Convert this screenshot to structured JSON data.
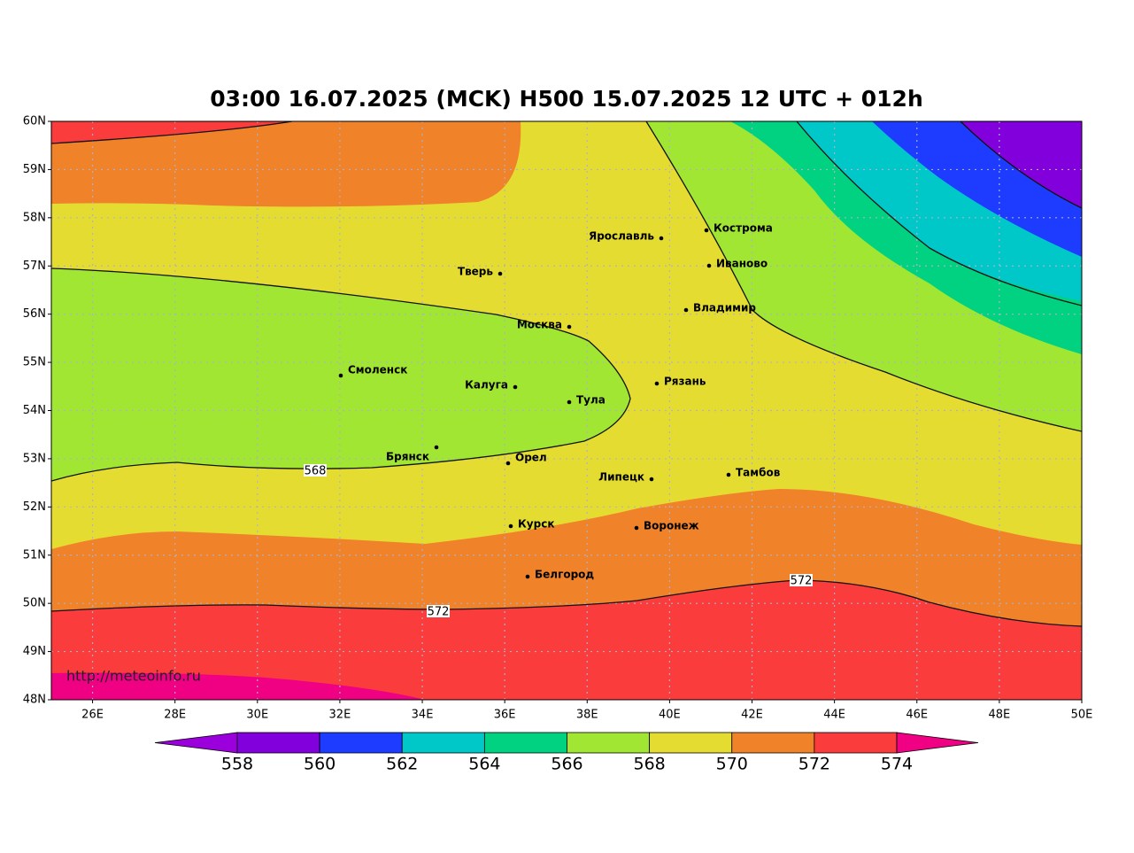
{
  "title": "03:00 16.07.2025 (MCK) H500  15.07.2025 12 UTC + 012h",
  "lat_labels": [
    "60N",
    "59N",
    "58N",
    "57N",
    "56N",
    "55N",
    "54N",
    "53N",
    "52N",
    "51N",
    "50N",
    "49N",
    "48N"
  ],
  "lon_labels": [
    "26E",
    "28E",
    "30E",
    "32E",
    "34E",
    "36E",
    "38E",
    "40E",
    "42E",
    "44E",
    "46E",
    "48E",
    "50E"
  ],
  "cities": [
    "Кострома",
    "Ярославль",
    "Иваново",
    "Тверь",
    "Владимир",
    "Москва",
    "Смоленск",
    "Калуга",
    "Рязань",
    "Тула",
    "Брянск",
    "Орел",
    "Липецк",
    "Тамбов",
    "Курск",
    "Воронеж",
    "Белгород"
  ],
  "contour_labels": [
    "568",
    "572",
    "572"
  ],
  "colorbar": {
    "ticks": [
      558,
      560,
      562,
      564,
      566,
      568,
      570,
      572,
      574
    ]
  },
  "watermark": "http://meteoinfo.ru"
}
